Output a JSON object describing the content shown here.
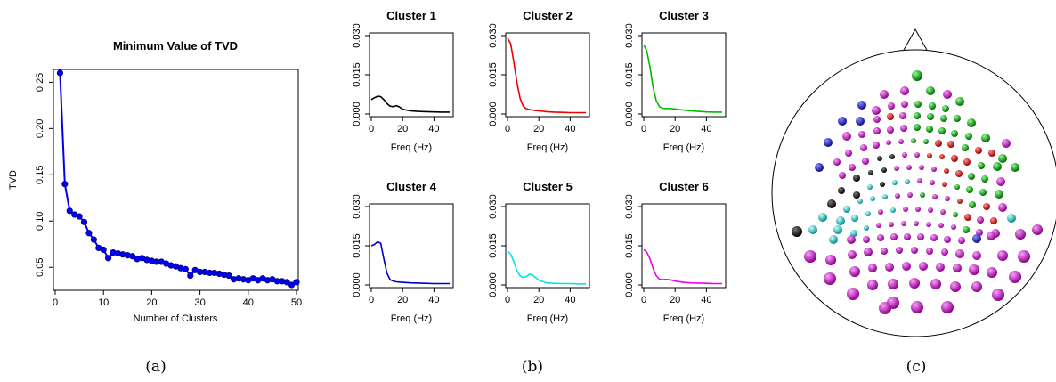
{
  "chart_data": [
    {
      "panel": "(a)",
      "type": "line",
      "title": "Minimum Value of TVD",
      "xlabel": "Number of Clusters",
      "ylabel": "TVD",
      "xlim": [
        0,
        50
      ],
      "ylim": [
        0.03,
        0.26
      ],
      "x_ticks": [
        0,
        10,
        20,
        30,
        40,
        50
      ],
      "y_ticks": [
        0.05,
        0.1,
        0.15,
        0.2,
        0.25
      ],
      "color": "#0000ee",
      "markers": "filled-circle",
      "x": [
        1,
        2,
        3,
        4,
        5,
        6,
        7,
        8,
        9,
        10,
        11,
        12,
        13,
        14,
        15,
        16,
        17,
        18,
        19,
        20,
        21,
        22,
        23,
        24,
        25,
        26,
        27,
        28,
        29,
        30,
        31,
        32,
        33,
        34,
        35,
        36,
        37,
        38,
        39,
        40,
        41,
        42,
        43,
        44,
        45,
        46,
        47,
        48,
        49,
        50
      ],
      "y": [
        0.26,
        0.14,
        0.111,
        0.107,
        0.105,
        0.099,
        0.087,
        0.08,
        0.071,
        0.069,
        0.06,
        0.066,
        0.065,
        0.064,
        0.063,
        0.062,
        0.059,
        0.06,
        0.058,
        0.057,
        0.056,
        0.056,
        0.054,
        0.052,
        0.051,
        0.049,
        0.048,
        0.041,
        0.047,
        0.045,
        0.045,
        0.044,
        0.044,
        0.043,
        0.042,
        0.041,
        0.037,
        0.038,
        0.037,
        0.036,
        0.038,
        0.036,
        0.038,
        0.036,
        0.037,
        0.035,
        0.035,
        0.034,
        0.031,
        0.034
      ]
    },
    {
      "panel": "(b)",
      "type": "line",
      "xlabel": "Freq (Hz)",
      "xlim": [
        0,
        50
      ],
      "ylim": [
        0,
        0.03
      ],
      "x_ticks": [
        0,
        20,
        40
      ],
      "y_ticks": [
        "0.000",
        "0.015",
        "0.030"
      ],
      "x": [
        0,
        2,
        4,
        6,
        8,
        10,
        12,
        14,
        16,
        18,
        20,
        25,
        30,
        35,
        40,
        45,
        50
      ],
      "panels": [
        {
          "title": "Cluster 1",
          "color": "#000000",
          "values": [
            0.0055,
            0.0062,
            0.0068,
            0.0066,
            0.0055,
            0.004,
            0.003,
            0.0028,
            0.0032,
            0.0027,
            0.0018,
            0.0012,
            0.001,
            0.0009,
            0.0008,
            0.0007,
            0.0007
          ]
        },
        {
          "title": "Cluster 2",
          "color": "#ee0000",
          "values": [
            0.029,
            0.027,
            0.02,
            0.012,
            0.006,
            0.003,
            0.002,
            0.0017,
            0.0015,
            0.0013,
            0.0012,
            0.0009,
            0.0007,
            0.0006,
            0.0005,
            0.0005,
            0.0005
          ]
        },
        {
          "title": "Cluster 3",
          "color": "#00bb00",
          "values": [
            0.0265,
            0.024,
            0.018,
            0.01,
            0.005,
            0.0028,
            0.0022,
            0.0021,
            0.0021,
            0.002,
            0.0019,
            0.0015,
            0.0012,
            0.001,
            0.0008,
            0.0007,
            0.0007
          ]
        },
        {
          "title": "Cluster 4",
          "color": "#0000cc",
          "values": [
            0.015,
            0.0155,
            0.0165,
            0.016,
            0.01,
            0.0045,
            0.002,
            0.0015,
            0.0012,
            0.0011,
            0.001,
            0.0008,
            0.0007,
            0.0006,
            0.0005,
            0.0005,
            0.0005
          ]
        },
        {
          "title": "Cluster 5",
          "color": "#00e5e5",
          "values": [
            0.013,
            0.0118,
            0.009,
            0.0055,
            0.0035,
            0.0028,
            0.0032,
            0.0041,
            0.0038,
            0.0028,
            0.0018,
            0.0008,
            0.0006,
            0.0005,
            0.0005,
            0.0004,
            0.0004
          ]
        },
        {
          "title": "Cluster 6",
          "color": "#ee00ee",
          "values": [
            0.0135,
            0.0125,
            0.01,
            0.0062,
            0.0035,
            0.0022,
            0.002,
            0.0021,
            0.002,
            0.0018,
            0.0015,
            0.001,
            0.0008,
            0.0007,
            0.0006,
            0.0005,
            0.0005
          ]
        }
      ]
    },
    {
      "panel": "(c)",
      "type": "scatter",
      "description_label": "scalp electrode map",
      "colors": {
        "black": "#000000",
        "blue": "#1a1acc",
        "red": "#dd0000",
        "green": "#009900",
        "cyan": "#00cccc",
        "magenta": "#cc00cc"
      }
    }
  ],
  "captions": {
    "a": "(a)",
    "b": "(b)",
    "c": "(c)"
  }
}
